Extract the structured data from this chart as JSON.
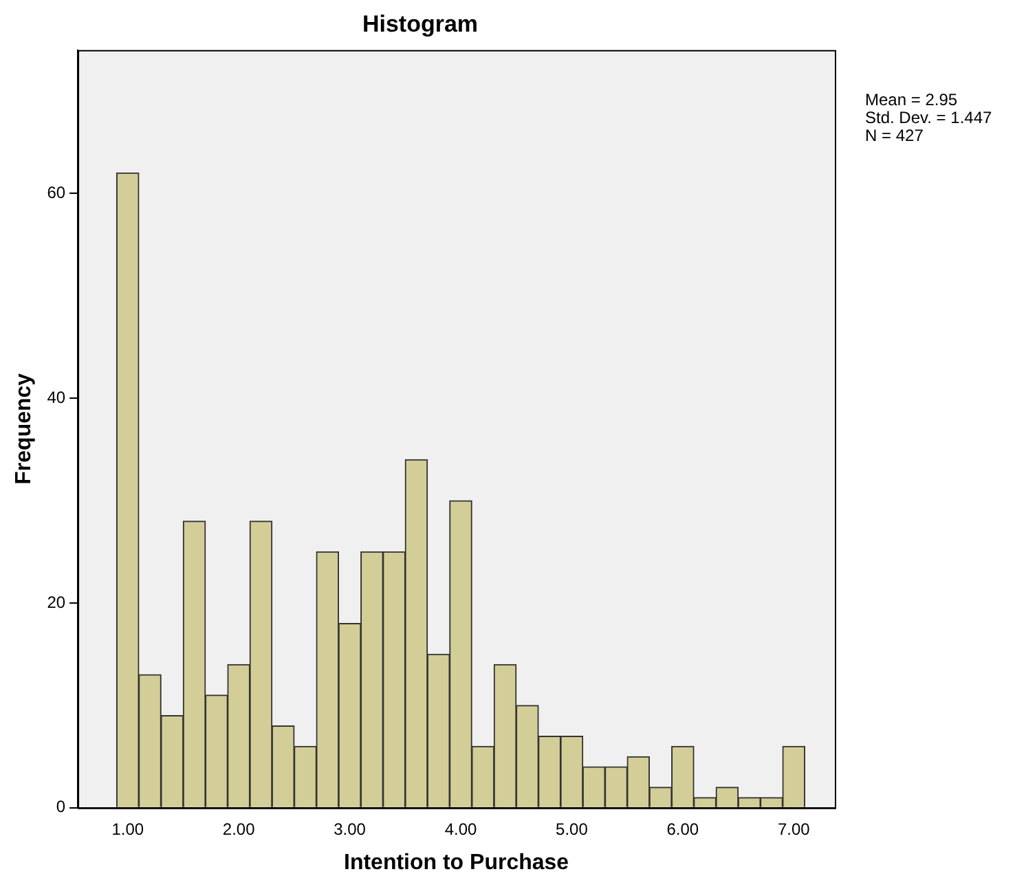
{
  "chart_data": {
    "type": "histogram",
    "title": "Histogram",
    "xlabel": "Intention to Purchase",
    "ylabel": "Frequency",
    "bins": [
      0.9,
      1.1,
      1.3,
      1.5,
      1.7,
      1.9,
      2.1,
      2.3,
      2.5,
      2.7,
      2.9,
      3.1,
      3.3,
      3.5,
      3.7,
      3.9,
      4.1,
      4.3,
      4.5,
      4.7,
      4.9,
      5.1,
      5.3,
      5.5,
      5.7,
      5.9,
      6.1,
      6.3,
      6.5,
      6.7,
      6.9,
      7.1
    ],
    "values": [
      62,
      13,
      9,
      28,
      11,
      14,
      28,
      8,
      6,
      25,
      18,
      25,
      25,
      34,
      15,
      30,
      6,
      14,
      10,
      7,
      7,
      4,
      4,
      5,
      2,
      6,
      1,
      2,
      1,
      1,
      6
    ],
    "color": "#d3ce97",
    "xlim": [
      0.55,
      7.37
    ],
    "xticks": [
      {
        "value": 1,
        "label": "1.00"
      },
      {
        "value": 2,
        "label": "2.00"
      },
      {
        "value": 3,
        "label": "3.00"
      },
      {
        "value": 4,
        "label": "4.00"
      },
      {
        "value": 5,
        "label": "5.00"
      },
      {
        "value": 6,
        "label": "6.00"
      },
      {
        "value": 7,
        "label": "7.00"
      }
    ],
    "ylim": [
      0,
      74
    ],
    "yticks": [
      0,
      20,
      40,
      60
    ],
    "annotations": [
      "Mean = 2.95",
      "Std. Dev. = 1.447",
      "N = 427"
    ],
    "grid": false,
    "legend": false
  }
}
